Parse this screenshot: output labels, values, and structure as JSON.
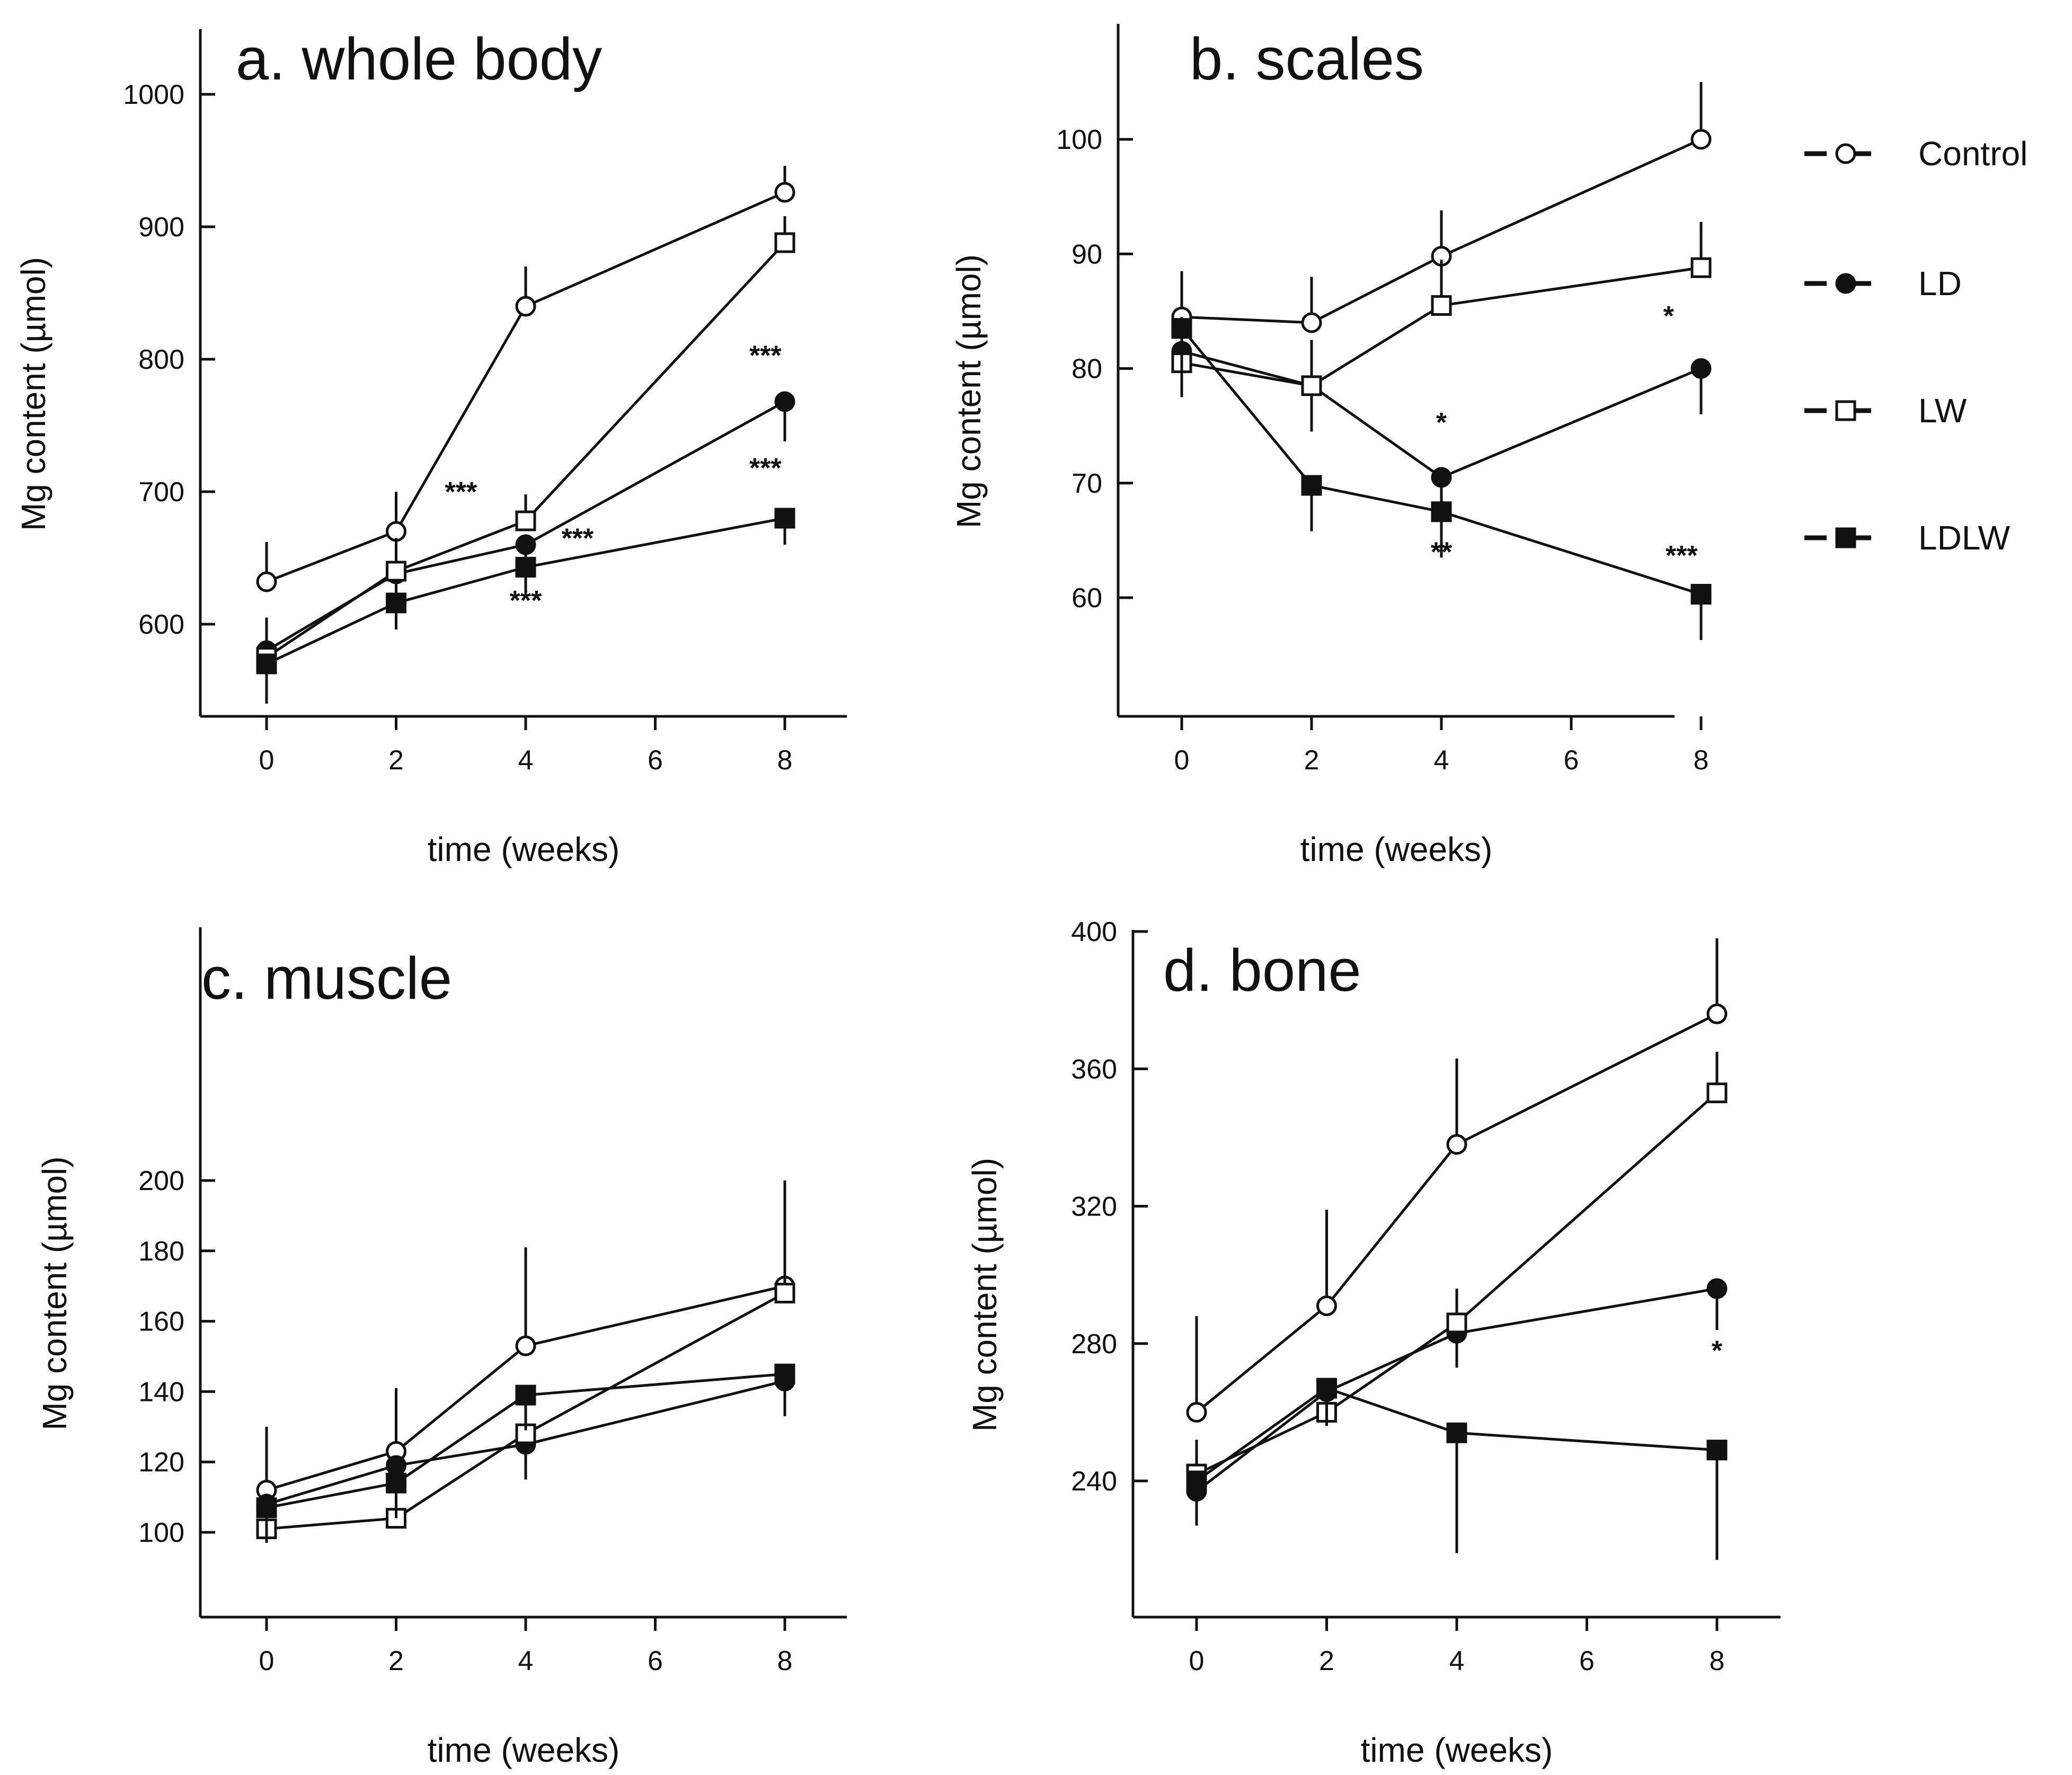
{
  "figure": {
    "legend": [
      {
        "name": "Control",
        "marker": "open-circle"
      },
      {
        "name": "LD",
        "marker": "filled-circle"
      },
      {
        "name": "LW",
        "marker": "open-square"
      },
      {
        "name": "LDLW",
        "marker": "filled-square"
      }
    ],
    "colors": {
      "ink": "#111111",
      "background": "#ffffff"
    }
  },
  "chart_data": [
    {
      "id": "a",
      "type": "line",
      "title": "a. whole body",
      "xlabel": "time (weeks)",
      "ylabel": "Mg content (µmol)",
      "x": [
        0,
        2,
        4,
        8
      ],
      "xticks": [
        0,
        2,
        4,
        6,
        8
      ],
      "xlim": [
        -1,
        9
      ],
      "ylim": [
        550,
        1050
      ],
      "yticks": [
        600,
        700,
        800,
        900,
        1000
      ],
      "series": [
        {
          "name": "Control",
          "values": [
            632,
            670,
            840,
            926
          ],
          "err": [
            30,
            30,
            30,
            20
          ]
        },
        {
          "name": "LD",
          "values": [
            580,
            638,
            660,
            768
          ],
          "err": [
            30,
            25,
            20,
            30
          ]
        },
        {
          "name": "LW",
          "values": [
            575,
            640,
            678,
            888
          ],
          "err": [
            30,
            25,
            20,
            20
          ]
        },
        {
          "name": "LDLW",
          "values": [
            570,
            616,
            643,
            680
          ],
          "err": [
            30,
            20,
            20,
            20
          ]
        }
      ],
      "annotations": [
        {
          "text": "***",
          "x": 3.0,
          "y": 700
        },
        {
          "text": "***",
          "x": 4.8,
          "y": 665
        },
        {
          "text": "***",
          "x": 4.0,
          "y": 618
        },
        {
          "text": "***",
          "x": 7.7,
          "y": 803
        },
        {
          "text": "***",
          "x": 7.7,
          "y": 718
        }
      ]
    },
    {
      "id": "b",
      "type": "line",
      "title": "b. scales",
      "xlabel": "time (weeks)",
      "ylabel": "Mg content (µmol)",
      "x": [
        0,
        2,
        4,
        8
      ],
      "xticks": [
        0,
        2,
        4,
        6,
        8
      ],
      "xlim": [
        -1,
        9
      ],
      "ylim": [
        50,
        110
      ],
      "yticks": [
        60,
        70,
        80,
        90,
        100
      ],
      "series": [
        {
          "name": "Control",
          "values": [
            84.5,
            84,
            89.8,
            100
          ],
          "err": [
            4,
            4,
            4,
            5
          ]
        },
        {
          "name": "LD",
          "values": [
            81.5,
            78.5,
            70.5,
            80
          ],
          "err": [
            4,
            4,
            4,
            4
          ]
        },
        {
          "name": "LW",
          "values": [
            80.5,
            78.5,
            85.5,
            88.8
          ],
          "err": [
            4,
            4,
            4,
            4
          ]
        },
        {
          "name": "LDLW",
          "values": [
            83.5,
            69.8,
            67.5,
            60.3
          ],
          "err": [
            4,
            4,
            4,
            4
          ]
        }
      ],
      "annotations": [
        {
          "text": "*",
          "x": 4.0,
          "y": 75.3
        },
        {
          "text": "**",
          "x": 4.0,
          "y": 64.0
        },
        {
          "text": "*",
          "x": 7.5,
          "y": 84.6
        },
        {
          "text": "***",
          "x": 7.7,
          "y": 63.7
        }
      ]
    },
    {
      "id": "c",
      "type": "line",
      "title": "c. muscle",
      "xlabel": "time (weeks)",
      "ylabel": "Mg content (µmol)",
      "x": [
        0,
        2,
        4,
        8
      ],
      "xticks": [
        0,
        2,
        4,
        6,
        8
      ],
      "xlim": [
        -1,
        9
      ],
      "ylim": [
        80,
        240
      ],
      "yticks": [
        100,
        120,
        140,
        160,
        180,
        200
      ],
      "series": [
        {
          "name": "Control",
          "values": [
            112,
            123,
            153,
            170
          ],
          "err": [
            18,
            18,
            28,
            30
          ]
        },
        {
          "name": "LD",
          "values": [
            108,
            119,
            125,
            143
          ],
          "err": [
            10,
            10,
            10,
            10
          ]
        },
        {
          "name": "LW",
          "values": [
            101,
            104,
            128,
            168
          ],
          "err": [
            10,
            10,
            10,
            15
          ]
        },
        {
          "name": "LDLW",
          "values": [
            107,
            114,
            139,
            145
          ],
          "err": [
            10,
            10,
            10,
            10
          ]
        }
      ],
      "annotations": []
    },
    {
      "id": "d",
      "type": "line",
      "title": "d. bone",
      "xlabel": "time (weeks)",
      "ylabel": "Mg content (µmol)",
      "x": [
        0,
        2,
        4,
        8
      ],
      "xticks": [
        0,
        2,
        4,
        6,
        8
      ],
      "xlim": [
        -1,
        9
      ],
      "ylim": [
        200,
        400
      ],
      "yticks": [
        240,
        280,
        320,
        360,
        400
      ],
      "series": [
        {
          "name": "Control",
          "values": [
            260,
            291,
            338,
            376
          ],
          "err": [
            28,
            28,
            25,
            22
          ]
        },
        {
          "name": "LD",
          "values": [
            237,
            266,
            283,
            296
          ],
          "err": [
            10,
            10,
            10,
            12
          ]
        },
        {
          "name": "LW",
          "values": [
            242,
            260,
            286,
            353
          ],
          "err": [
            10,
            10,
            10,
            12
          ]
        },
        {
          "name": "LDLW",
          "values": [
            240,
            267,
            254,
            249
          ],
          "err": [
            10,
            10,
            35,
            32
          ]
        }
      ],
      "annotations": [
        {
          "text": "*",
          "x": 8.0,
          "y": 278
        }
      ]
    }
  ]
}
